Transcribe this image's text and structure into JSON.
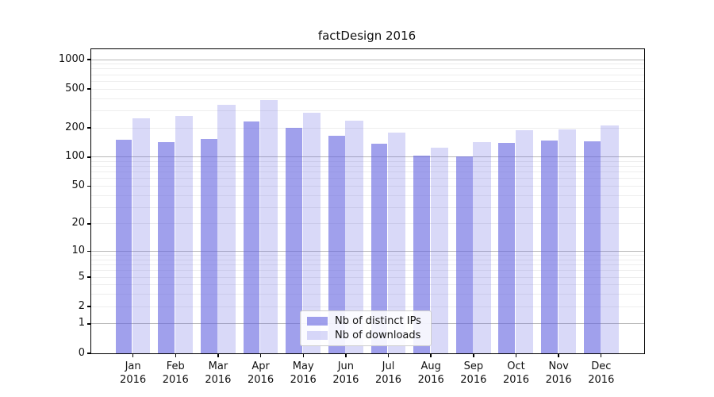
{
  "chart_data": {
    "type": "bar",
    "title": "factDesign 2016",
    "year_label": "2016",
    "categories": [
      "Jan",
      "Feb",
      "Mar",
      "Apr",
      "May",
      "Jun",
      "Jul",
      "Aug",
      "Sep",
      "Oct",
      "Nov",
      "Dec"
    ],
    "series": [
      {
        "name": "Nb of distinct IPs",
        "color": "rgba(96,96,224,0.60)",
        "values": [
          152,
          144,
          155,
          233,
          199,
          166,
          137,
          104,
          101,
          140,
          148,
          146
        ]
      },
      {
        "name": "Nb of downloads",
        "color": "rgba(96,96,224,0.24)",
        "values": [
          252,
          264,
          347,
          385,
          284,
          235,
          178,
          126,
          144,
          190,
          193,
          213
        ]
      }
    ],
    "yscale": "symlog",
    "yticks": [
      0,
      1,
      2,
      5,
      10,
      20,
      50,
      100,
      200,
      500,
      1000
    ],
    "ylim": [
      0,
      1276
    ],
    "grid": "on",
    "legend_position": "lower-center-inside"
  },
  "colors": {
    "major_grid": "#b8b8b8",
    "minor_grid": "#ededed",
    "axis": "#000000",
    "legend_border": "#cccccc"
  }
}
